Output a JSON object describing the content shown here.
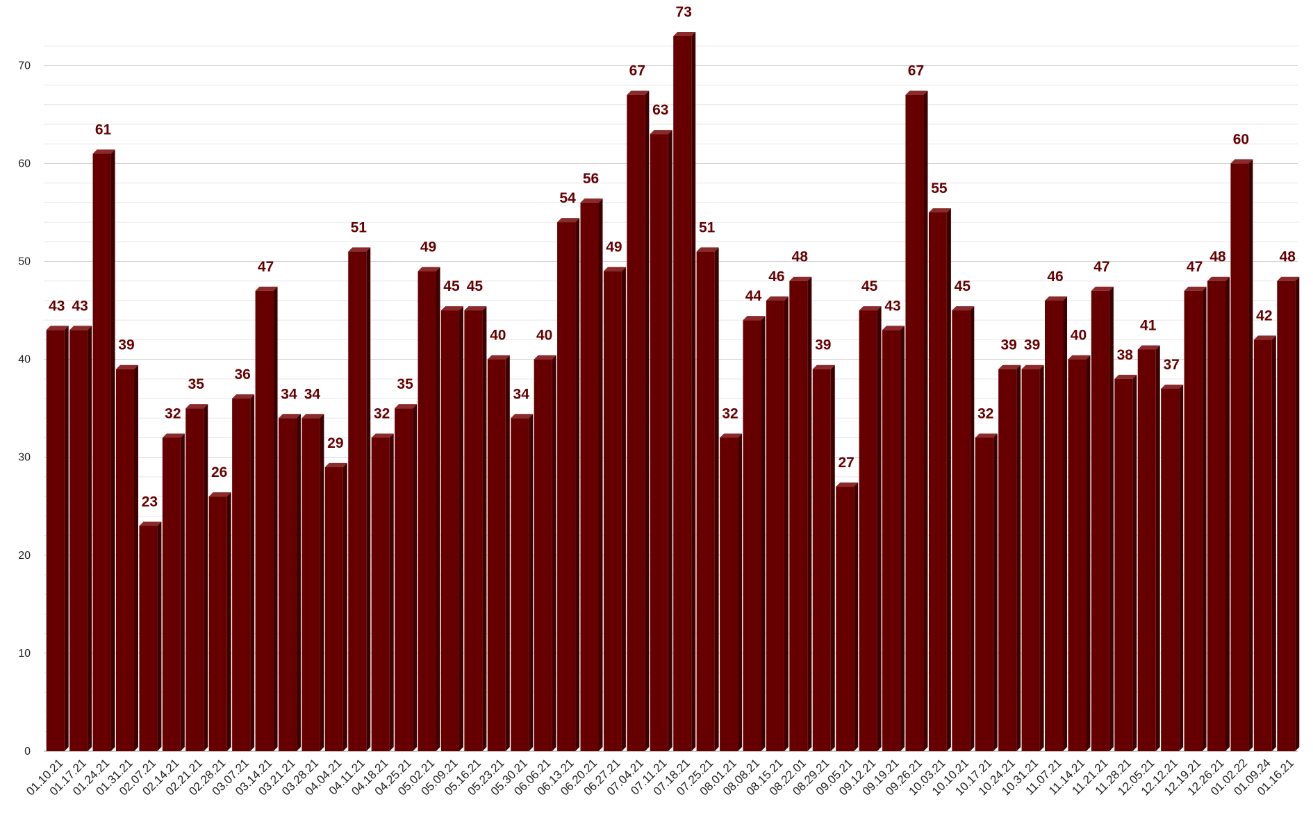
{
  "chart_data": {
    "type": "bar",
    "title": "",
    "xlabel": "",
    "ylabel": "",
    "ylim": [
      0,
      73
    ],
    "yticks": [
      0,
      10,
      20,
      30,
      40,
      50,
      60,
      70
    ],
    "grid": true,
    "legend": "none",
    "colors": {
      "bar": "#660000",
      "bar_top": "#8a2a2a",
      "bar_side": "#3d0000",
      "label": "#660000",
      "grid": "#dddddd",
      "baseline": "#999999"
    },
    "categories": [
      "01.10.21",
      "01.17.21",
      "01.24.21",
      "01.31.21",
      "02.07.21",
      "02.14.21",
      "02.21.21",
      "02.28.21",
      "03.07.21",
      "03.14.21",
      "03.21.21",
      "03.28.21",
      "04.04.21",
      "04.11.21",
      "04.18.21",
      "04.25.21",
      "05.02.21",
      "05.09.21",
      "05.16.21",
      "05.23.21",
      "05.30.21",
      "06.06.21",
      "06.13.21",
      "06.20.21",
      "06.27.21",
      "07.04.21",
      "07.11.21",
      "07.18.21",
      "07.25.21",
      "08.01.21",
      "08.08.21",
      "08.15.21",
      "08.22.01",
      "08.29.21",
      "09.05.21",
      "09.12.21",
      "09.19.21",
      "09.26.21",
      "10.03.21",
      "10.10.21",
      "10.17.21",
      "10.24.21",
      "10.31.21",
      "11.07.21",
      "11.14.21",
      "11.21.21",
      "11.28.21",
      "12.05.21",
      "12.12.21",
      "12.19.21",
      "12.26.21",
      "01.02.22",
      "01.09.24",
      "01.16.21"
    ],
    "series": [
      {
        "values": [
          43,
          43,
          61,
          39,
          23,
          32,
          35,
          26,
          36,
          47,
          34,
          34,
          29,
          51,
          32,
          35,
          49,
          45,
          45,
          40,
          34,
          40,
          54,
          56,
          49,
          67,
          63,
          73,
          51,
          32,
          44,
          46,
          48,
          39,
          27,
          45,
          43,
          67,
          55,
          45,
          32,
          39,
          39,
          46,
          40,
          47,
          38,
          41,
          37,
          47,
          48,
          60,
          42,
          48
        ]
      }
    ]
  }
}
